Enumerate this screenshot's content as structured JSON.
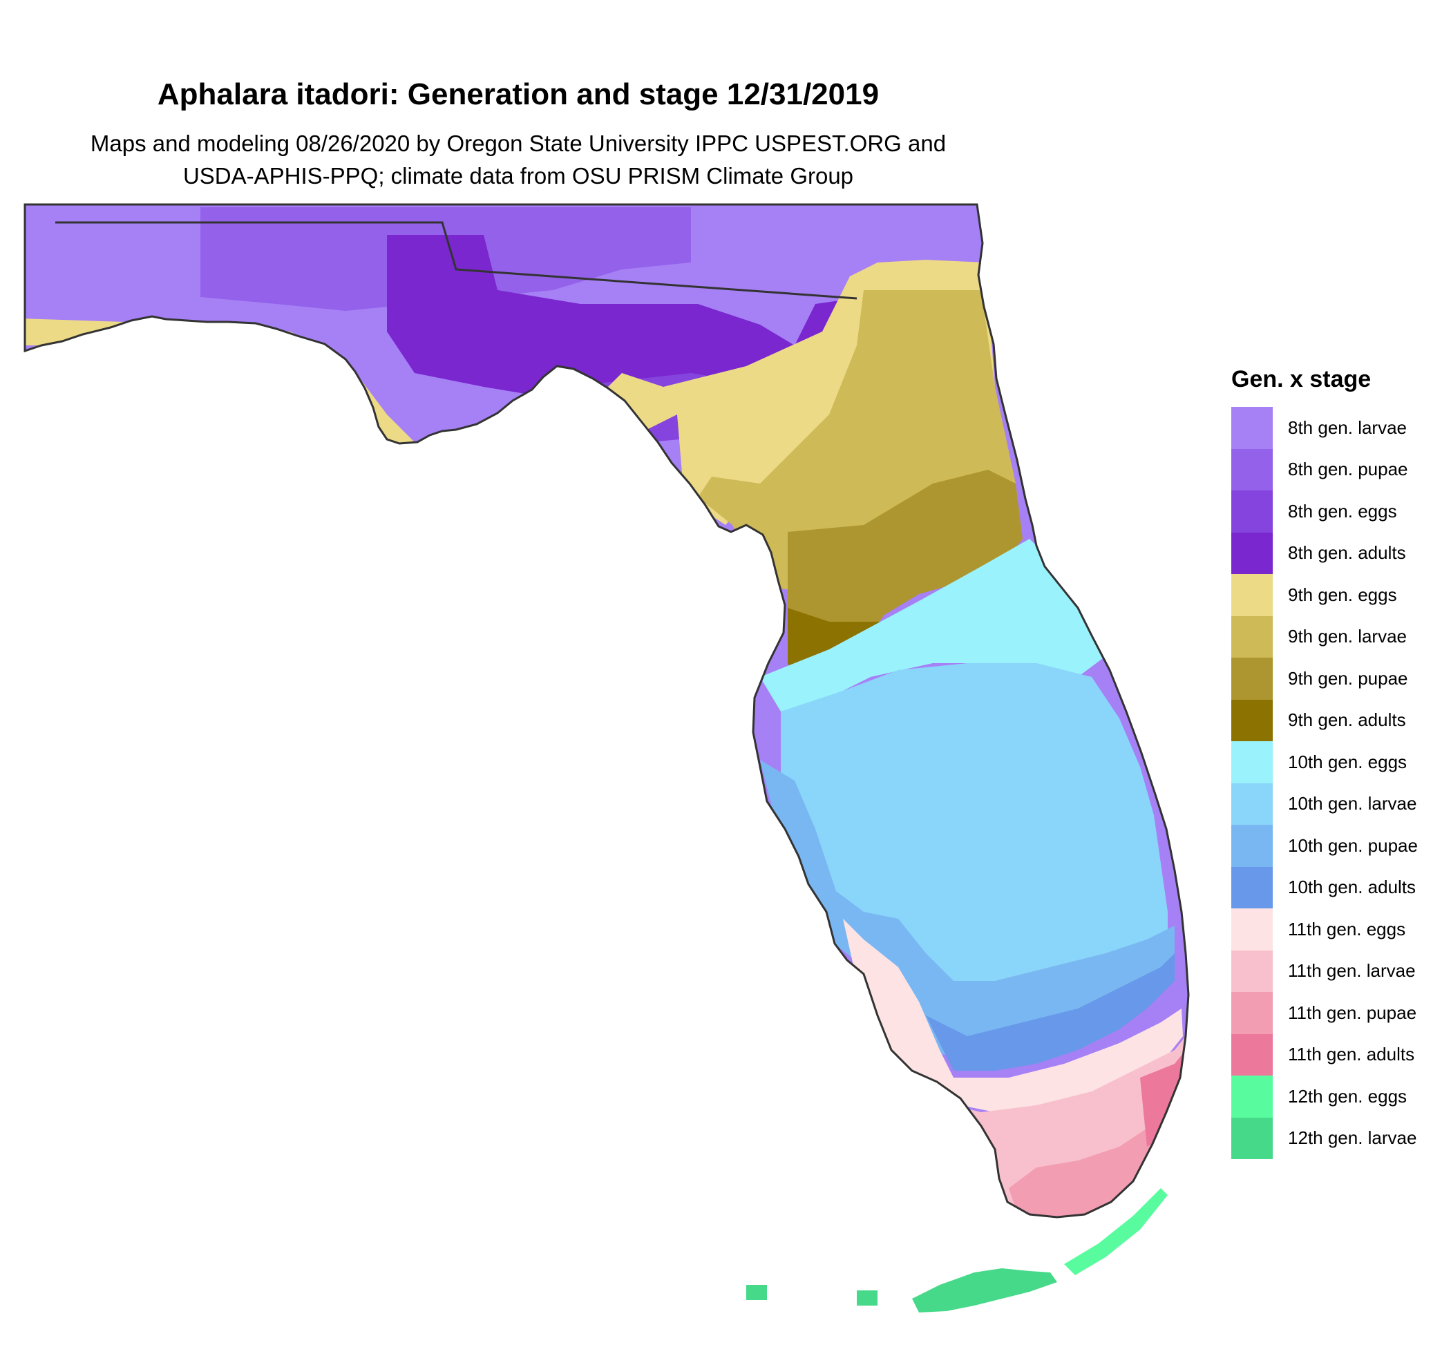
{
  "map": {
    "title": "Aphalara itadori: Generation and stage 12/31/2019",
    "subtitle_line1": "Maps and modeling 08/26/2020 by Oregon State University IPPC USPEST.ORG and",
    "subtitle_line2": "USDA-APHIS-PPQ; climate data from OSU PRISM Climate Group",
    "region": "Florida"
  },
  "legend": {
    "title": "Gen. x stage",
    "items": [
      {
        "label": "8th gen. larvae",
        "color": "#a680f5"
      },
      {
        "label": "8th gen. pupae",
        "color": "#9461ea"
      },
      {
        "label": "8th gen. eggs",
        "color": "#8544dd"
      },
      {
        "label": "8th gen. adults",
        "color": "#7a27cf"
      },
      {
        "label": "9th gen. eggs",
        "color": "#ecda86"
      },
      {
        "label": "9th gen. larvae",
        "color": "#ceba57"
      },
      {
        "label": "9th gen. pupae",
        "color": "#ad962f"
      },
      {
        "label": "9th gen. adults",
        "color": "#8c7200"
      },
      {
        "label": "10th gen. eggs",
        "color": "#9af2fc"
      },
      {
        "label": "10th gen. larvae",
        "color": "#8ad5fa"
      },
      {
        "label": "10th gen. pupae",
        "color": "#79b7f2"
      },
      {
        "label": "10th gen. adults",
        "color": "#6898e9"
      },
      {
        "label": "11th gen. eggs",
        "color": "#fde3e4"
      },
      {
        "label": "11th gen. larvae",
        "color": "#f8c0cc"
      },
      {
        "label": "11th gen. pupae",
        "color": "#f29db2"
      },
      {
        "label": "11th gen. adults",
        "color": "#ec789c"
      },
      {
        "label": "12th gen. eggs",
        "color": "#58fc9e"
      },
      {
        "label": "12th gen. larvae",
        "color": "#46d989"
      }
    ]
  }
}
